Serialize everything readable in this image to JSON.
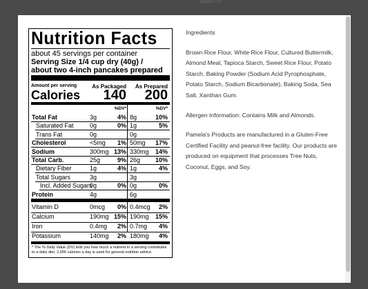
{
  "background": {
    "quantity_label": "QUANTITY"
  },
  "label": {
    "title": "Nutrition Facts",
    "servings": "about 45 servings per container",
    "serving_size_1": "Serving Size 1/4 cup dry (40g) /",
    "serving_size_2": "about two 4-inch pancakes prepared",
    "amount_per_serving": "Amount per serving",
    "calories_label": "Calories",
    "col_1_title": "As Packaged",
    "col_1_calories": 140,
    "col_2_title": "As Prepared",
    "col_2_calories": 200,
    "dv_header": "%DV*",
    "rows": [
      {
        "name": "Total Fat",
        "amount_1": "3g",
        "dv_1": "4%",
        "amount_2": "8g",
        "dv_2": "10%",
        "bold": true,
        "level": 0
      },
      {
        "name": "Saturated Fat",
        "amount_1": "0g",
        "dv_1": "0%",
        "amount_2": "1g",
        "dv_2": "5%",
        "bold": false,
        "level": 1
      },
      {
        "name": "Trans  Fat",
        "amount_1": "0g",
        "amount_2": "0g",
        "bold": false,
        "level": 1
      },
      {
        "name": "Cholesterol",
        "amount_1": "<5mg",
        "dv_1": "1%",
        "amount_2": "50mg",
        "dv_2": "17%",
        "bold": true,
        "level": 0
      },
      {
        "name": "Sodium",
        "amount_1": "300mg",
        "dv_1": "13%",
        "amount_2": "330mg",
        "dv_2": "14%",
        "bold": true,
        "level": 0
      },
      {
        "name": "Total Carb.",
        "amount_1": "25g",
        "dv_1": "9%",
        "amount_2": "26g",
        "dv_2": "10%",
        "bold": true,
        "level": 0
      },
      {
        "name": "Dietary Fiber",
        "amount_1": "1g",
        "dv_1": "4%",
        "amount_2": "1g",
        "dv_2": "4%",
        "bold": false,
        "level": 1
      },
      {
        "name": "Total Sugars",
        "amount_1": "3g",
        "amount_2": "3g",
        "bold": false,
        "level": 1
      },
      {
        "name": "Incl. Added Sugars",
        "amount_1": "0g",
        "dv_1": "0%",
        "amount_2": "0g",
        "dv_2": "0%",
        "bold": false,
        "level": 2
      },
      {
        "name": "Protein",
        "amount_1": "4g",
        "amount_2": "6g",
        "bold": true,
        "level": 0
      }
    ],
    "minerals": [
      {
        "name": "Vitamin D",
        "amount_1": "0mcg",
        "dv_1": "0%",
        "amount_2": "0.4mcg",
        "dv_2": "2%"
      },
      {
        "name": "Calcium",
        "amount_1": "190mg",
        "dv_1": "15%",
        "amount_2": "190mg",
        "dv_2": "15%"
      },
      {
        "name": "Iron",
        "amount_1": "0.4mg",
        "dv_1": "2%",
        "amount_2": "0.7mg",
        "dv_2": "4%"
      },
      {
        "name": "Potassium",
        "amount_1": "140mg",
        "dv_1": "2%",
        "amount_2": "180mg",
        "dv_2": "4%"
      }
    ],
    "footnote": "* The % Daily Value (DV) tells you how much a nutrient in a serving contributes to a daily diet. 2,000 calories a day is used for general nutrition advice."
  },
  "info": {
    "ingredients_title": "Ingredients",
    "ingredients": "Brown Rice Flour, White Rice Flour, Cultured Buttermilk, Almond Meal, Tapioca Starch, Sweet Rice Flour, Potato Starch, Baking Powder (Sodium Acid Pyrophosphate, Potato Starch, Sodium Bicarbonate), Baking Soda, Sea Salt, Xanthan Gum.",
    "allergen": "Allergen Information: Contains Milk and Almonds.",
    "facility": "Pamela's Products are manufactured in a Gluten-Free Certified Facility and peanut-free facility. Our products are produced on equipment that processes Tree Nuts, Coconut, Eggs, and Soy."
  }
}
